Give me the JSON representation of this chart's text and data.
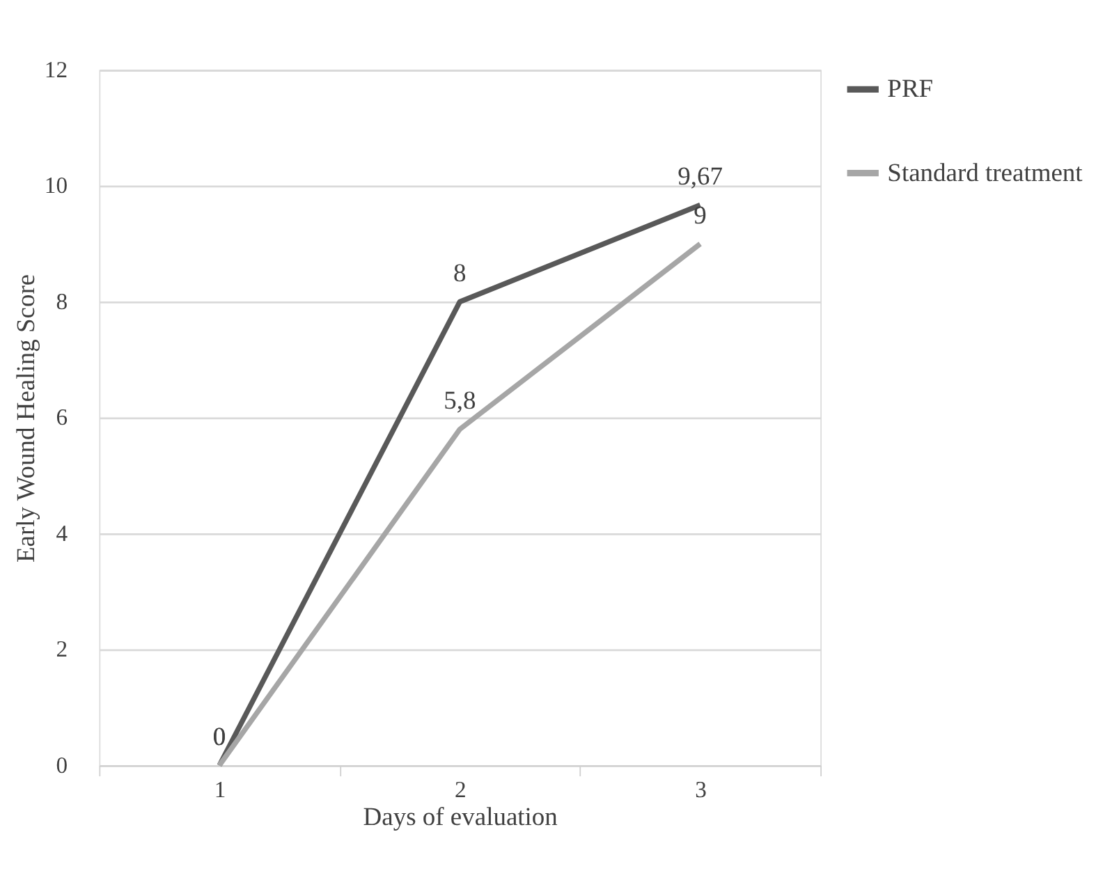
{
  "chart_data": {
    "type": "line",
    "xlabel": "Days of evaluation",
    "ylabel": "Early Wound Healing Score",
    "categories": [
      "1",
      "2",
      "3"
    ],
    "series": [
      {
        "name": "PRF",
        "color": "#595959",
        "values": [
          0,
          8,
          9.67
        ],
        "value_labels": [
          "0",
          "8",
          "9,67"
        ]
      },
      {
        "name": "Standard treatment",
        "color": "#a6a6a6",
        "values": [
          0,
          5.8,
          9
        ],
        "value_labels": [
          "0",
          "5,8",
          "9"
        ]
      }
    ],
    "ylim": [
      0,
      12
    ],
    "yticks": [
      0,
      2,
      4,
      6,
      8,
      10,
      12
    ],
    "grid": "y",
    "legend": "right",
    "marker": "none",
    "line_style": "solid"
  }
}
